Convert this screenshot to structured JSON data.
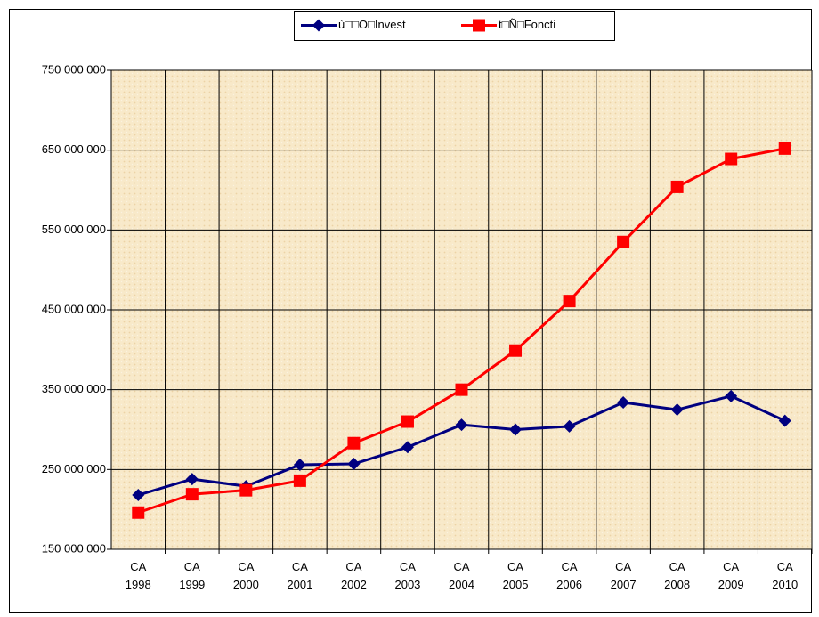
{
  "chart_data": {
    "type": "line",
    "categories": [
      "CA 1998",
      "CA 1999",
      "CA 2000",
      "CA 2001",
      "CA 2002",
      "CA 2003",
      "CA 2004",
      "CA 2005",
      "CA 2006",
      "CA 2007",
      "CA 2008",
      "CA 2009",
      "CA 2010"
    ],
    "series": [
      {
        "name": "ù□□O□Invest",
        "color": "#000080",
        "marker": "diamond",
        "values": [
          218000000,
          238000000,
          229000000,
          256000000,
          257000000,
          278000000,
          306000000,
          300000000,
          304000000,
          334000000,
          325000000,
          342000000,
          311000000
        ]
      },
      {
        "name": "t□Ñ□Foncti",
        "color": "#ff0000",
        "marker": "square",
        "values": [
          196000000,
          219000000,
          224000000,
          236000000,
          283000000,
          310000000,
          350000000,
          399000000,
          461000000,
          535000000,
          604000000,
          639000000,
          652000000
        ]
      }
    ],
    "ylim": [
      150000000,
      750000000
    ],
    "yticks": [
      {
        "value": 150000000,
        "label": "150 000 000"
      },
      {
        "value": 250000000,
        "label": "250 000 000"
      },
      {
        "value": 350000000,
        "label": "350 000 000"
      },
      {
        "value": 450000000,
        "label": "450 000 000"
      },
      {
        "value": 550000000,
        "label": "550 000 000"
      },
      {
        "value": 650000000,
        "label": "650 000 000"
      },
      {
        "value": 750000000,
        "label": "750 000 000"
      }
    ],
    "grid": true,
    "legend": "top"
  }
}
